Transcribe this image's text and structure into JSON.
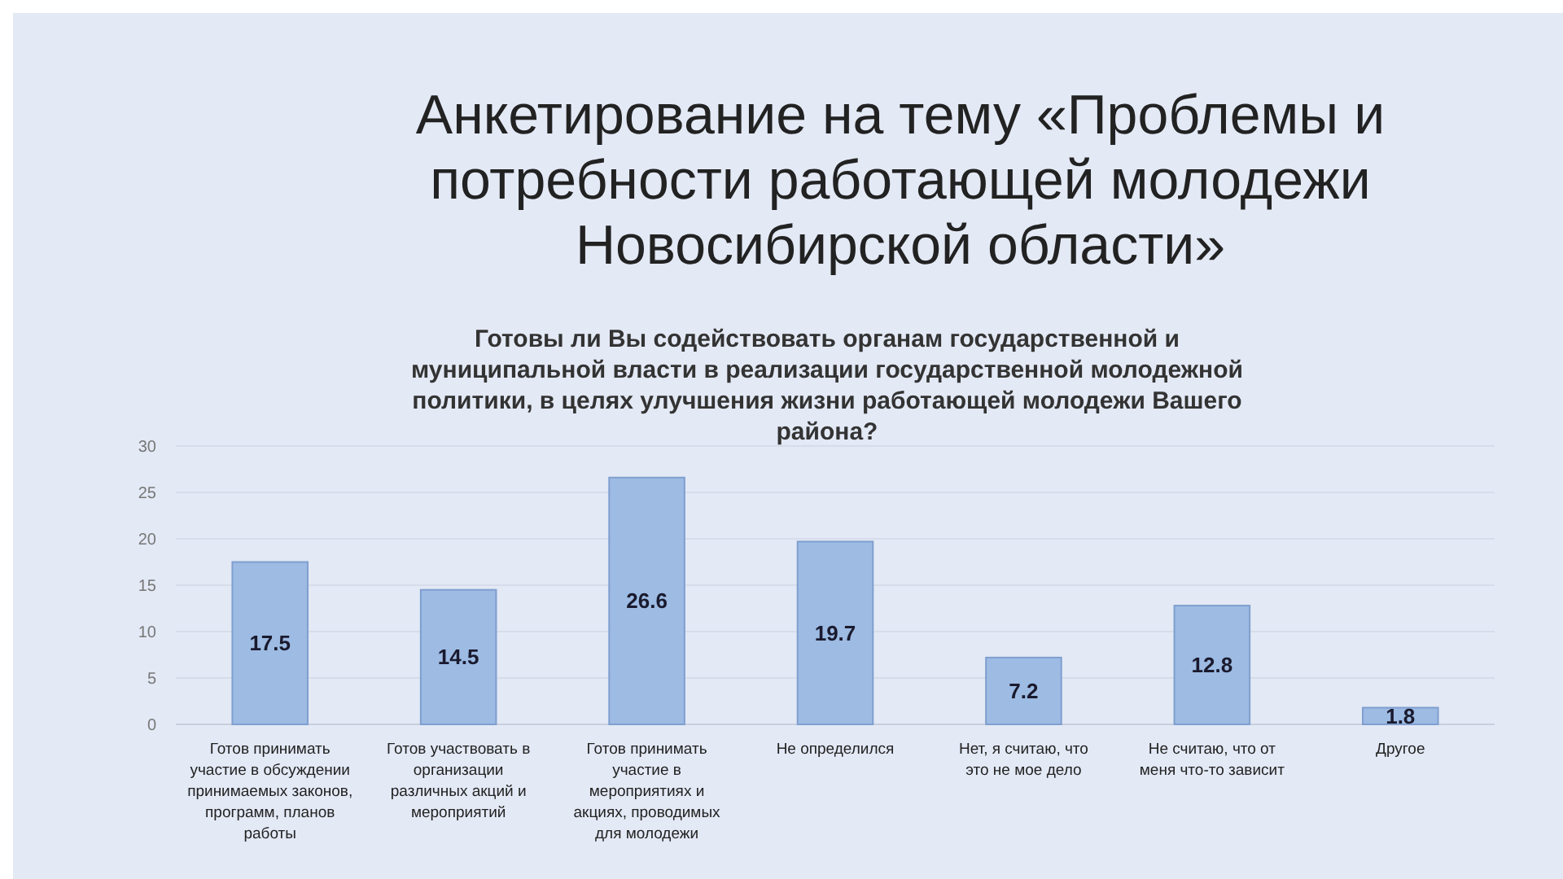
{
  "chart_data": {
    "type": "bar",
    "title": "Анкетирование на тему «Проблемы и потребности работающей молодежи Новосибирской области»",
    "subtitle": "Готовы ли Вы содействовать органам государственной и муниципальной власти в реализации государственной молодежной политики, в целях улучшения жизни работающей молодежи Вашего района?",
    "categories": [
      "Готов принимать участие в обсуждении принимаемых законов, программ, планов работы",
      "Готов участвовать в организации различных акций и мероприятий",
      "Готов принимать участие в мероприятиях и акциях, проводимых для молодежи",
      "Не определился",
      "Нет, я считаю, что это не мое дело",
      "Не считаю, что от меня что-то зависит",
      "Другое"
    ],
    "values": [
      17.5,
      14.5,
      26.6,
      19.7,
      7.2,
      12.8,
      1.8
    ],
    "color": "#9dbbe3",
    "ylim": [
      0,
      30
    ],
    "yticks": [
      0,
      5,
      10,
      15,
      20,
      25,
      30
    ],
    "grid": "y",
    "data_labels": true
  }
}
